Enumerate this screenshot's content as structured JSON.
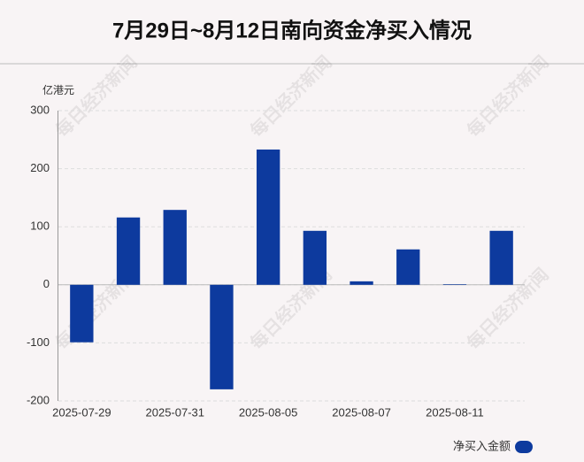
{
  "chart_data": {
    "type": "bar",
    "title": "7月29日~8月12日南向资金净买入情况",
    "y_unit": "亿港元",
    "watermark": "每日经济新闻",
    "categories": [
      "2025-07-29",
      null,
      "2025-07-31",
      null,
      "2025-08-05",
      null,
      "2025-08-07",
      null,
      "2025-08-11",
      null
    ],
    "series": [
      {
        "name": "净买入金额",
        "color": "#0d3a9e",
        "values": [
          -99,
          116,
          129,
          -180,
          233,
          93,
          6,
          61,
          1,
          93
        ]
      }
    ],
    "ylim": [
      -200,
      300
    ],
    "yticks": [
      -200,
      -100,
      0,
      100,
      200,
      300
    ],
    "grid": true
  }
}
